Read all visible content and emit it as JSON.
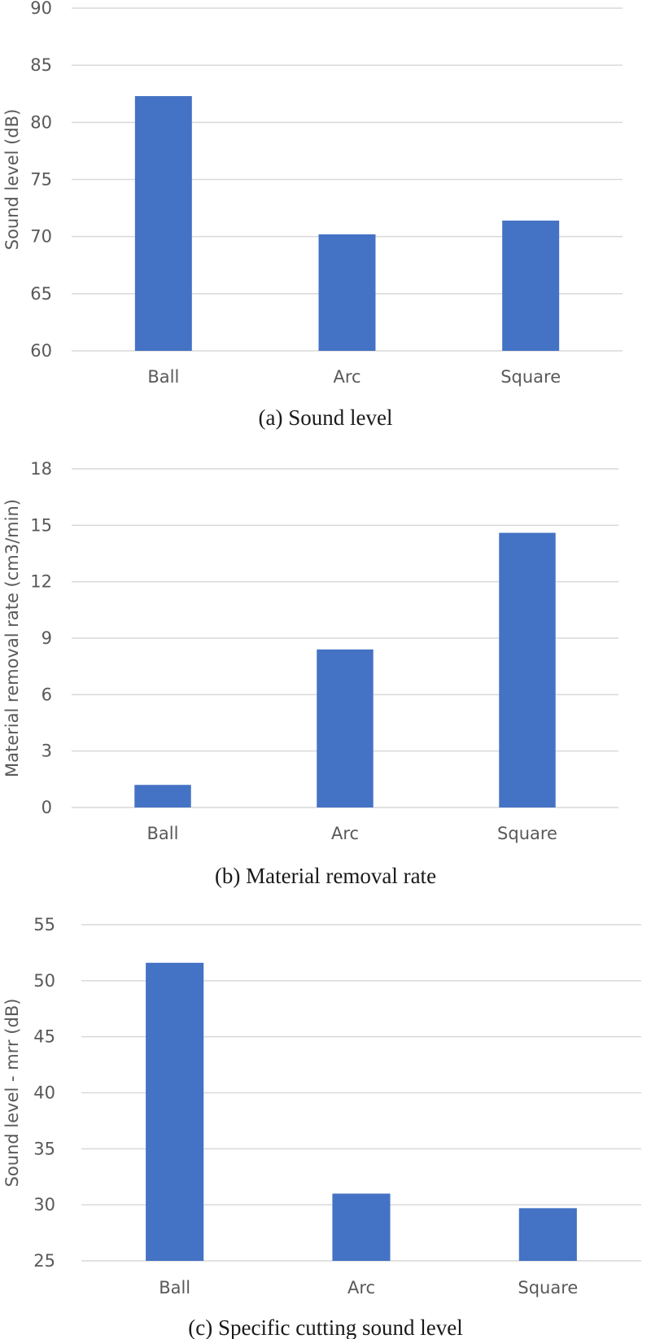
{
  "bar_color": "#4472C4",
  "chart_data": [
    {
      "type": "bar",
      "categories": [
        "Ball",
        "Arc",
        "Square"
      ],
      "values": [
        82.3,
        70.2,
        71.4
      ],
      "ylabel": "Sound level (dB)",
      "ylim": [
        60,
        90
      ],
      "yticks": [
        60,
        65,
        70,
        75,
        80,
        85,
        90
      ],
      "caption": "(a)  Sound  level",
      "grid": true
    },
    {
      "type": "bar",
      "categories": [
        "Ball",
        "Arc",
        "Square"
      ],
      "values": [
        1.2,
        8.4,
        14.6
      ],
      "ylabel": "Material removal rate (cm3/min)",
      "ylim": [
        0,
        18
      ],
      "yticks": [
        0,
        3,
        6,
        9,
        12,
        15,
        18
      ],
      "caption": "(b)  Material  removal  rate",
      "grid": true
    },
    {
      "type": "bar",
      "categories": [
        "Ball",
        "Arc",
        "Square"
      ],
      "values": [
        51.6,
        31.0,
        29.7
      ],
      "ylabel": "Sound level - mrr (dB)",
      "ylim": [
        25,
        55
      ],
      "yticks": [
        25,
        30,
        35,
        40,
        45,
        50,
        55
      ],
      "caption": "(c)  Specific  cutting  sound  level",
      "grid": true
    }
  ]
}
